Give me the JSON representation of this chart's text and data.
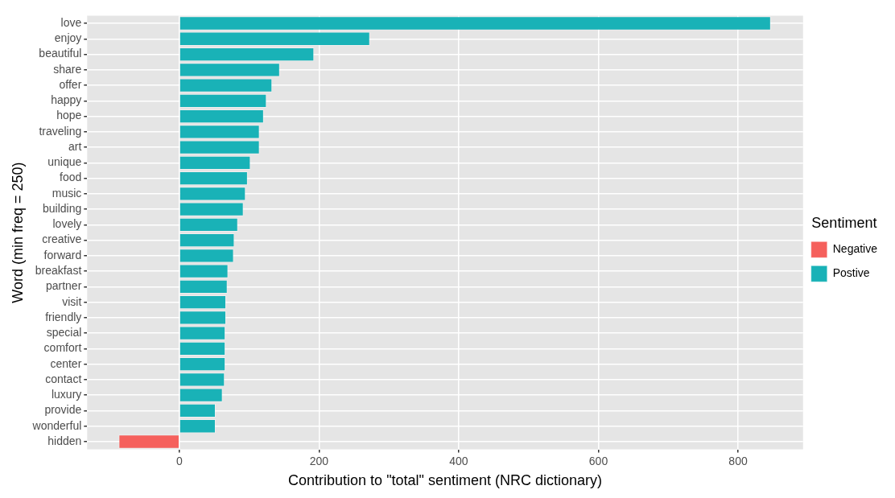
{
  "chart_data": {
    "type": "bar",
    "orientation": "horizontal",
    "xlabel": "Contribution to \"total\" sentiment (NRC dictionary)",
    "ylabel": "Word (min freq = 250)",
    "legend_title": "Sentiment",
    "legend": "right",
    "categories": [
      "love",
      "enjoy",
      "beautiful",
      "share",
      "offer",
      "happy",
      "hope",
      "traveling",
      "art",
      "unique",
      "food",
      "music",
      "building",
      "lovely",
      "creative",
      "forward",
      "breakfast",
      "partner",
      "visit",
      "friendly",
      "special",
      "comfort",
      "center",
      "contact",
      "luxury",
      "provide",
      "wonderful",
      "hidden"
    ],
    "series": [
      {
        "name": "Negative",
        "color": "#f5605c",
        "values": [
          null,
          null,
          null,
          null,
          null,
          null,
          null,
          null,
          null,
          null,
          null,
          null,
          null,
          null,
          null,
          null,
          null,
          null,
          null,
          null,
          null,
          null,
          null,
          null,
          null,
          null,
          null,
          -87
        ]
      },
      {
        "name": "Postive",
        "color": "#19b2b7",
        "values": [
          847,
          273,
          193,
          144,
          133,
          125,
          121,
          115,
          115,
          102,
          98,
          95,
          92,
          84,
          79,
          78,
          70,
          69,
          67,
          67,
          66,
          66,
          66,
          65,
          62,
          52,
          52,
          null
        ]
      }
    ],
    "xlim": [
      -132,
      893
    ],
    "xticks": [
      0,
      200,
      400,
      600,
      800
    ],
    "grid": true
  }
}
